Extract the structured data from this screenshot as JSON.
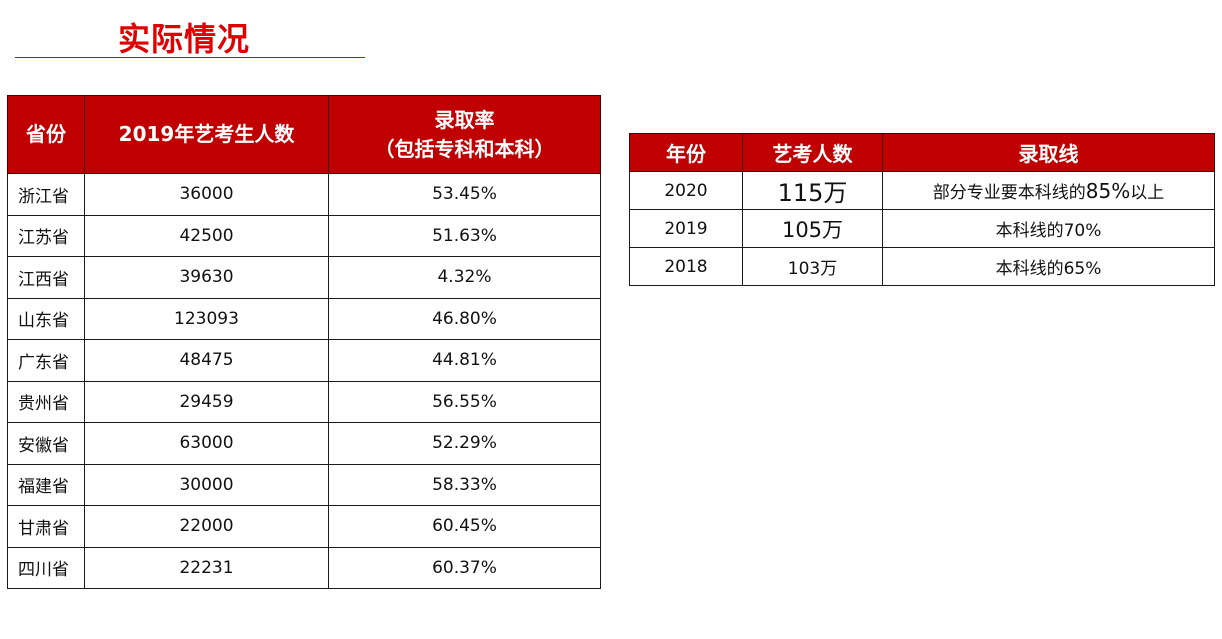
{
  "page_title": "实际情况",
  "province_table": {
    "headers": [
      "省份",
      "2019年艺考生人数",
      "录取率",
      "（包括专科和本科）"
    ],
    "rows": [
      {
        "province": "浙江省",
        "count": "36000",
        "rate": "53.45%"
      },
      {
        "province": "江苏省",
        "count": "42500",
        "rate": "51.63%"
      },
      {
        "province": "江西省",
        "count": "39630",
        "rate": "4.32%"
      },
      {
        "province": "山东省",
        "count": "123093",
        "rate": "46.80%"
      },
      {
        "province": "广东省",
        "count": "48475",
        "rate": "44.81%"
      },
      {
        "province": "贵州省",
        "count": "29459",
        "rate": "56.55%"
      },
      {
        "province": "安徽省",
        "count": "63000",
        "rate": "52.29%"
      },
      {
        "province": "福建省",
        "count": "30000",
        "rate": "58.33%"
      },
      {
        "province": "甘肃省",
        "count": "22000",
        "rate": "60.45%"
      },
      {
        "province": "四川省",
        "count": "22231",
        "rate": "60.37%"
      }
    ]
  },
  "year_table": {
    "headers": [
      "年份",
      "艺考人数",
      "录取线"
    ],
    "rows": [
      {
        "year": "2020",
        "count": "115万",
        "line_prefix": "部分专业要本科线的",
        "line_pct": "85%",
        "line_suffix": "以上"
      },
      {
        "year": "2019",
        "count": "105万",
        "line": "本科线的70%"
      },
      {
        "year": "2018",
        "count": "103万",
        "line": "本科线的65%"
      }
    ]
  },
  "colors": {
    "accent": "#c00000",
    "title": "#e00000"
  }
}
